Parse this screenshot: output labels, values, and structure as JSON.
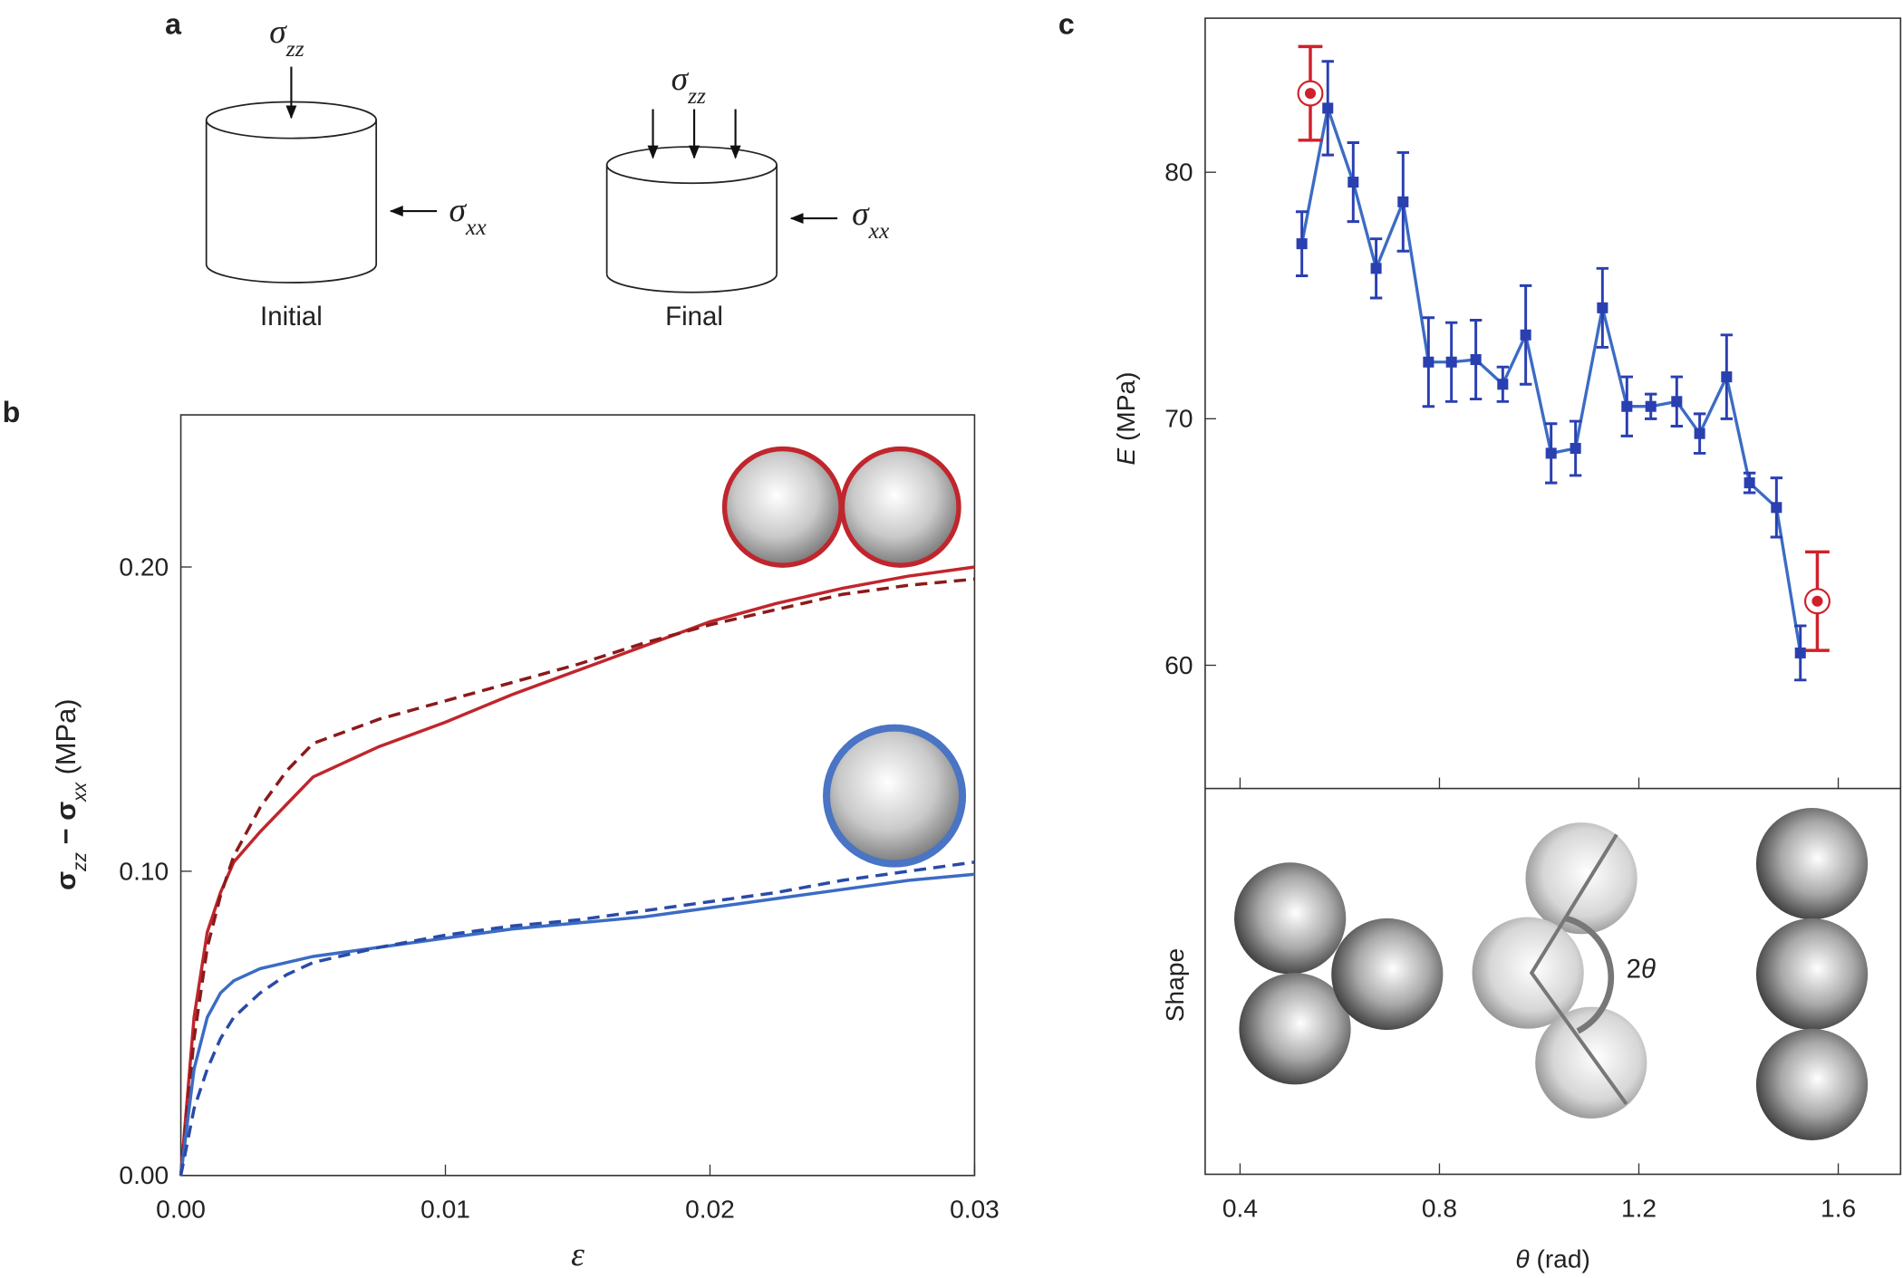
{
  "panel_a": {
    "label": "a",
    "initial": {
      "top": [
        {
          "text": "σ",
          "italic": true
        },
        {
          "text": "zz",
          "sub": true,
          "italic": true
        }
      ],
      "side": [
        {
          "text": "σ",
          "italic": true
        },
        {
          "text": "xx",
          "sub": true,
          "italic": true
        }
      ],
      "caption": "Initial"
    },
    "final": {
      "top": [
        {
          "text": "σ",
          "italic": true
        },
        {
          "text": "zz",
          "sub": true,
          "italic": true
        }
      ],
      "side": [
        {
          "text": "σ",
          "italic": true
        },
        {
          "text": "xx",
          "sub": true,
          "italic": true
        }
      ],
      "caption": "Final"
    }
  },
  "chart_data": [
    {
      "type": "line",
      "panel_label": "b",
      "x_label": [
        {
          "text": "ε",
          "italic": true
        }
      ],
      "y_label": [
        {
          "text": "σ",
          "bold": true
        },
        {
          "text": "zz",
          "sub": true,
          "italic": true
        },
        {
          "text": " − ",
          "bold": true
        },
        {
          "text": "σ",
          "bold": true
        },
        {
          "text": "xx",
          "sub": true,
          "italic": true
        },
        {
          "text": " (MPa)"
        }
      ],
      "x": [
        0,
        0.0005,
        0.001,
        0.0015,
        0.002,
        0.003,
        0.004,
        0.005,
        0.0075,
        0.01,
        0.0125,
        0.015,
        0.0175,
        0.02,
        0.0225,
        0.025,
        0.0275,
        0.03
      ],
      "series": [
        {
          "color": "#c0262d",
          "linestyle": "solid",
          "values": [
            0,
            0.052,
            0.08,
            0.093,
            0.103,
            0.113,
            0.122,
            0.131,
            0.141,
            0.149,
            0.158,
            0.166,
            0.174,
            0.182,
            0.188,
            0.193,
            0.197,
            0.2
          ]
        },
        {
          "color": "#8b1a1a",
          "linestyle": "dashed",
          "values": [
            0,
            0.045,
            0.075,
            0.092,
            0.105,
            0.121,
            0.133,
            0.142,
            0.15,
            0.156,
            0.162,
            0.168,
            0.175,
            0.181,
            0.186,
            0.191,
            0.194,
            0.196
          ]
        },
        {
          "color": "#3b6cc4",
          "linestyle": "solid",
          "values": [
            0,
            0.035,
            0.052,
            0.06,
            0.064,
            0.068,
            0.07,
            0.072,
            0.075,
            0.078,
            0.081,
            0.083,
            0.085,
            0.088,
            0.091,
            0.094,
            0.097,
            0.099
          ]
        },
        {
          "color": "#2a4aa8",
          "linestyle": "dashed",
          "values": [
            0,
            0.022,
            0.035,
            0.045,
            0.052,
            0.06,
            0.066,
            0.07,
            0.075,
            0.079,
            0.082,
            0.084,
            0.087,
            0.09,
            0.093,
            0.097,
            0.1,
            0.103
          ]
        }
      ],
      "xlim": [
        0,
        0.03
      ],
      "xticks": [
        {
          "value": 0,
          "label": "0.00"
        },
        {
          "value": 0.01,
          "label": "0.01"
        },
        {
          "value": 0.02,
          "label": "0.02"
        },
        {
          "value": 0.03,
          "label": "0.03"
        }
      ],
      "ylim": [
        0,
        0.25
      ],
      "yticks": [
        {
          "value": 0,
          "label": "0.00"
        },
        {
          "value": 0.1,
          "label": "0.10"
        },
        {
          "value": 0.2,
          "label": "0.20"
        }
      ]
    },
    {
      "type": "errorbar",
      "panel_label": "c",
      "x_label": [
        {
          "text": "θ",
          "italic": true
        },
        {
          "text": " (rad)"
        }
      ],
      "y_label": [
        {
          "text": "E",
          "italic": true
        },
        {
          "text": " (MPa)"
        }
      ],
      "shape_label": "Shape",
      "angle_label": [
        {
          "text": "2"
        },
        {
          "text": "θ",
          "italic": true
        }
      ],
      "series": [
        {
          "color": "#2a3fb0",
          "marker": "square",
          "line": true,
          "x": [
            0.524,
            0.576,
            0.627,
            0.673,
            0.727,
            0.778,
            0.824,
            0.873,
            0.927,
            0.973,
            1.024,
            1.073,
            1.127,
            1.176,
            1.224,
            1.276,
            1.322,
            1.376,
            1.422,
            1.476,
            1.524
          ],
          "values": [
            77.1,
            82.6,
            79.6,
            76.1,
            78.8,
            72.3,
            72.3,
            72.4,
            71.4,
            73.4,
            68.6,
            68.8,
            74.5,
            70.5,
            70.5,
            70.7,
            69.4,
            71.7,
            67.4,
            66.4,
            60.5
          ],
          "errors": [
            1.3,
            1.9,
            1.6,
            1.2,
            2.0,
            1.8,
            1.6,
            1.6,
            0.7,
            2.0,
            1.2,
            1.1,
            1.6,
            1.2,
            0.5,
            1.0,
            0.8,
            1.7,
            0.4,
            1.2,
            1.1
          ]
        },
        {
          "color": "#d0202a",
          "marker": "ring",
          "line": false,
          "x": [
            0.541,
            1.558
          ],
          "values": [
            83.2,
            62.6
          ],
          "errors": [
            1.9,
            2.0
          ]
        }
      ],
      "xlim": [
        0.33,
        1.725
      ],
      "xticks": [
        0.4,
        0.8,
        1.2,
        1.6
      ],
      "ylim": [
        55,
        86.25
      ],
      "yticks": [
        60,
        70,
        80
      ]
    }
  ]
}
